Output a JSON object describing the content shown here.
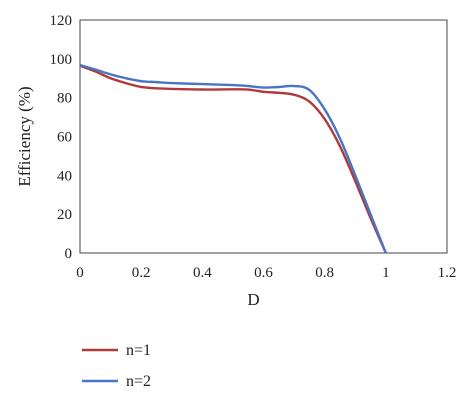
{
  "chart_data": {
    "type": "line",
    "xlabel": "D",
    "ylabel": "Efficiency (%)",
    "xlim": [
      0,
      1.2
    ],
    "ylim": [
      0,
      120
    ],
    "xticks": [
      "0",
      "0.2",
      "0.4",
      "0.6",
      "0.8",
      "1",
      "1.2"
    ],
    "yticks": [
      "0",
      "20",
      "40",
      "60",
      "80",
      "100",
      "120"
    ],
    "grid": false,
    "legend_position": "bottom-left",
    "series": [
      {
        "name": "n=1",
        "color": "#b03a3a",
        "x": [
          0,
          0.05,
          0.1,
          0.15,
          0.2,
          0.25,
          0.3,
          0.4,
          0.5,
          0.55,
          0.6,
          0.65,
          0.7,
          0.75,
          0.8,
          0.85,
          0.9,
          0.95,
          1.0
        ],
        "y": [
          96.5,
          93.5,
          90,
          87.5,
          85.5,
          84.8,
          84.5,
          84.2,
          84.3,
          84.2,
          83,
          82.5,
          81.5,
          78,
          69,
          55,
          37,
          18,
          0
        ]
      },
      {
        "name": "n=2",
        "color": "#4a74c4",
        "x": [
          0,
          0.05,
          0.1,
          0.15,
          0.2,
          0.25,
          0.3,
          0.4,
          0.5,
          0.55,
          0.6,
          0.65,
          0.7,
          0.75,
          0.8,
          0.85,
          0.9,
          0.95,
          1.0
        ],
        "y": [
          96.8,
          94.5,
          92,
          90,
          88.5,
          88,
          87.5,
          87,
          86.5,
          86,
          85.2,
          85.5,
          86,
          84,
          74,
          59,
          40,
          20,
          0
        ]
      }
    ]
  }
}
